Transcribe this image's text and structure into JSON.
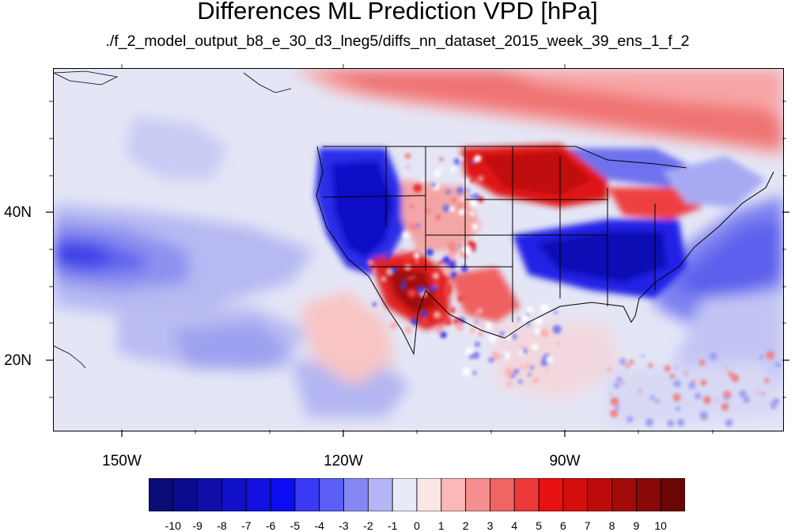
{
  "title": "Differences ML Prediction VPD [hPa]",
  "subtitle": "./f_2_model_output_b8_e_30_d3_lneg5/diffs_nn_dataset_2015_week_39_ens_1_f_2",
  "map": {
    "lon_range": [
      -160,
      -62
    ],
    "lat_range": [
      10.5,
      59
    ],
    "lat_ticks": [
      {
        "value": 40,
        "label": "40N"
      },
      {
        "value": 20,
        "label": "20N"
      }
    ],
    "lon_ticks": [
      {
        "value": -150,
        "label": "150W"
      },
      {
        "value": -120,
        "label": "120W"
      },
      {
        "value": -90,
        "label": "90W"
      }
    ],
    "projection": "cylindrical equidistant",
    "boundaries": "coastlines, US states"
  },
  "colorbar": {
    "labels": [
      "-10",
      "-9",
      "-8",
      "-7",
      "-6",
      "-5",
      "-4",
      "-3",
      "-2",
      "-1",
      "0",
      "1",
      "2",
      "3",
      "4",
      "5",
      "6",
      "7",
      "8",
      "9",
      "10"
    ],
    "colors": [
      "#0b0b78",
      "#0a0a8f",
      "#0f0fa8",
      "#1010c8",
      "#1010e0",
      "#0c0cf0",
      "#3b3bf5",
      "#5c5ff5",
      "#8588f3",
      "#b3b5f5",
      "#e8eaf7",
      "#fde6e6",
      "#fbb8b8",
      "#f58f8f",
      "#f06464",
      "#ec3a3a",
      "#e81010",
      "#d40d0d",
      "#bd0b0b",
      "#a30a0a",
      "#8a0808",
      "#6a0606"
    ]
  }
}
